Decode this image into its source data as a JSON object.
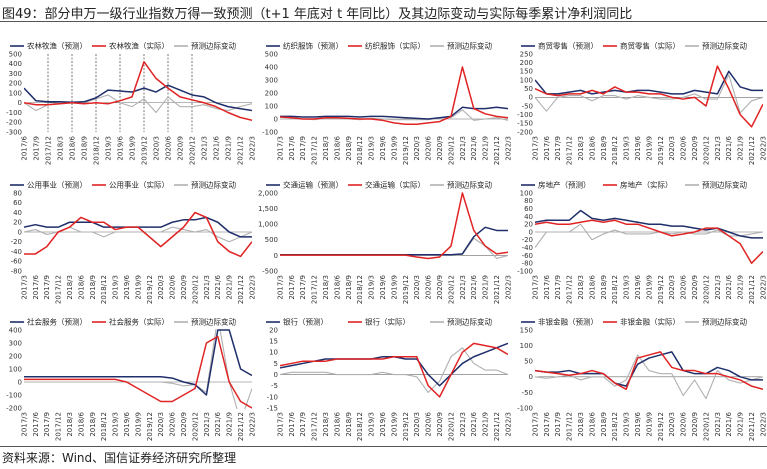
{
  "figure": {
    "title": "图49：部分申万一级行业指数万得一致预测（t+1 年底对 t 年同比）及其边际变动与实际每季累计净利润同比",
    "source": "资料来源：Wind、国信证券经济研究所整理"
  },
  "colors": {
    "forecast": "#1f2f6b",
    "actual": "#e02424",
    "change": "#b0b0b0"
  },
  "chart_data": [
    {
      "type": "line",
      "legend": [
        "农林牧渔（预测）",
        "农林牧渔（实际）",
        "预测边际变动"
      ],
      "x": [
        "2017/6",
        "2017/9",
        "2017/12",
        "2018/3",
        "2018/6",
        "2018/9",
        "2018/12",
        "2019/3",
        "2019/6",
        "2019/9",
        "2019/12",
        "2020/3",
        "2020/6",
        "2020/9",
        "2020/12",
        "2021/3",
        "2021/6",
        "2021/9",
        "2021/12",
        "2022/3"
      ],
      "y_ticks": [
        -300,
        -200,
        -100,
        0,
        100,
        200,
        300,
        400,
        500
      ],
      "ylim": [
        -300,
        500
      ],
      "vlines": [
        "2017/12",
        "2018/6",
        "2018/12",
        "2019/6",
        "2019/12",
        "2020/6",
        "2020/12"
      ],
      "series": [
        {
          "name": "农林牧渔（预测）",
          "values": [
            150,
            20,
            10,
            10,
            5,
            10,
            50,
            130,
            120,
            110,
            150,
            110,
            180,
            130,
            80,
            60,
            0,
            -40,
            -60,
            -80
          ]
        },
        {
          "name": "农林牧渔（实际）",
          "values": [
            0,
            -20,
            -20,
            -10,
            0,
            -10,
            0,
            -10,
            20,
            60,
            420,
            250,
            150,
            60,
            30,
            0,
            -40,
            -100,
            -150,
            -180
          ]
        },
        {
          "name": "预测边际变动",
          "values": [
            0,
            -80,
            -20,
            0,
            0,
            0,
            40,
            80,
            0,
            -40,
            40,
            -100,
            60,
            -40,
            -40,
            -20,
            -60,
            -80,
            -40,
            -10
          ]
        }
      ]
    },
    {
      "type": "line",
      "legend": [
        "纺织服饰（预测）",
        "纺织服饰（实际）",
        "预测边际变动"
      ],
      "x": [
        "2017/3",
        "2017/6",
        "2017/9",
        "2017/12",
        "2018/3",
        "2018/6",
        "2018/9",
        "2018/12",
        "2019/3",
        "2019/6",
        "2019/9",
        "2019/12",
        "2020/3",
        "2020/6",
        "2020/9",
        "2020/12",
        "2021/3",
        "2021/6",
        "2021/9",
        "2021/12",
        "2022/3"
      ],
      "y_ticks": [
        -100,
        0,
        100,
        200,
        300,
        400,
        500
      ],
      "ylim": [
        -100,
        500
      ],
      "series": [
        {
          "name": "纺织服饰（预测）",
          "values": [
            20,
            20,
            15,
            15,
            20,
            20,
            20,
            15,
            20,
            20,
            15,
            10,
            5,
            0,
            10,
            20,
            90,
            80,
            80,
            90,
            80
          ]
        },
        {
          "name": "纺织服饰（实际）",
          "values": [
            15,
            10,
            0,
            0,
            10,
            10,
            5,
            0,
            0,
            -10,
            -30,
            -40,
            -40,
            -30,
            -20,
            20,
            400,
            80,
            40,
            20,
            10
          ]
        },
        {
          "name": "预测边际变动",
          "values": [
            0,
            0,
            0,
            -5,
            5,
            0,
            0,
            -5,
            5,
            0,
            -5,
            -5,
            -5,
            -5,
            10,
            10,
            70,
            -10,
            0,
            10,
            -10
          ]
        }
      ]
    },
    {
      "type": "line",
      "legend": [
        "商贸零售（预测）",
        "商贸零售（实际）",
        "预测边际变动"
      ],
      "x": [
        "2017/3",
        "2017/6",
        "2017/9",
        "2017/12",
        "2018/3",
        "2018/6",
        "2018/9",
        "2018/12",
        "2019/3",
        "2019/6",
        "2019/9",
        "2019/12",
        "2020/3",
        "2020/6",
        "2020/9",
        "2020/12",
        "2021/3",
        "2021/6",
        "2021/9",
        "2021/12",
        "2022/3"
      ],
      "y_ticks": [
        -200,
        -150,
        -100,
        -50,
        0,
        50,
        100,
        150,
        200,
        250
      ],
      "ylim": [
        -200,
        250
      ],
      "series": [
        {
          "name": "商贸零售（预测）",
          "values": [
            100,
            20,
            20,
            30,
            40,
            20,
            30,
            40,
            30,
            40,
            40,
            30,
            20,
            20,
            40,
            30,
            20,
            150,
            60,
            40,
            40
          ]
        },
        {
          "name": "商贸零售（实际）",
          "values": [
            50,
            20,
            10,
            20,
            20,
            40,
            20,
            60,
            30,
            30,
            20,
            20,
            0,
            -10,
            0,
            -50,
            180,
            50,
            -100,
            -170,
            -40
          ]
        },
        {
          "name": "预测边际变动",
          "values": [
            0,
            -80,
            0,
            10,
            10,
            -20,
            10,
            10,
            -10,
            10,
            0,
            -10,
            -10,
            0,
            20,
            -10,
            -10,
            130,
            -90,
            -20,
            0
          ]
        }
      ]
    },
    {
      "type": "line",
      "legend": [
        "公用事业（预测）",
        "公用事业（实际）",
        "预测边际变动"
      ],
      "x": [
        "2017/3",
        "2017/6",
        "2017/9",
        "2017/12",
        "2018/3",
        "2018/6",
        "2018/9",
        "2018/12",
        "2019/3",
        "2019/6",
        "2019/9",
        "2019/12",
        "2020/3",
        "2020/6",
        "2020/9",
        "2020/12",
        "2021/3",
        "2021/6",
        "2021/9",
        "2021/12",
        "2022/3"
      ],
      "y_ticks": [
        -80,
        -60,
        -40,
        -20,
        0,
        20,
        40,
        60,
        80
      ],
      "ylim": [
        -80,
        80
      ],
      "series": [
        {
          "name": "公用事业（预测）",
          "values": [
            10,
            15,
            10,
            10,
            20,
            20,
            20,
            10,
            10,
            10,
            10,
            10,
            10,
            20,
            25,
            25,
            30,
            20,
            0,
            -10,
            -10
          ]
        },
        {
          "name": "公用事业（实际）",
          "values": [
            -45,
            -45,
            -30,
            0,
            10,
            30,
            20,
            20,
            5,
            10,
            10,
            -10,
            -30,
            -10,
            10,
            40,
            30,
            -20,
            -40,
            -50,
            -20
          ]
        },
        {
          "name": "预测边际变动",
          "values": [
            0,
            5,
            -5,
            0,
            10,
            0,
            0,
            -10,
            0,
            0,
            0,
            0,
            0,
            10,
            5,
            0,
            5,
            -10,
            -20,
            -10,
            0
          ]
        }
      ]
    },
    {
      "type": "line",
      "legend": [
        "交通运输（预测）",
        "交通运输（实际）",
        "预测边际变动"
      ],
      "x": [
        "2017/3",
        "2017/6",
        "2017/9",
        "2017/12",
        "2018/3",
        "2018/6",
        "2018/9",
        "2018/12",
        "2019/3",
        "2019/6",
        "2019/9",
        "2019/12",
        "2020/3",
        "2020/6",
        "2020/9",
        "2020/12",
        "2021/3",
        "2021/6",
        "2021/9",
        "2021/12",
        "2022/3"
      ],
      "y_ticks": [
        -500,
        0,
        500,
        1000,
        1500,
        2000
      ],
      "ylim": [
        -500,
        2000
      ],
      "series": [
        {
          "name": "交通运输（预测）",
          "values": [
            20,
            20,
            20,
            20,
            20,
            20,
            20,
            20,
            20,
            20,
            20,
            20,
            20,
            20,
            20,
            20,
            50,
            600,
            900,
            800,
            800
          ]
        },
        {
          "name": "交通运输（实际）",
          "values": [
            10,
            10,
            10,
            10,
            10,
            10,
            10,
            10,
            10,
            10,
            10,
            10,
            -50,
            -100,
            -50,
            300,
            2000,
            800,
            300,
            50,
            100
          ]
        },
        {
          "name": "预测边际变动",
          "values": [
            0,
            0,
            0,
            0,
            0,
            0,
            0,
            0,
            0,
            0,
            0,
            0,
            0,
            0,
            0,
            0,
            30,
            550,
            300,
            -100,
            0
          ]
        }
      ]
    },
    {
      "type": "line",
      "legend": [
        "房地产（预测）",
        "房地产（实际）",
        "预测边际变动"
      ],
      "x": [
        "2017/3",
        "2017/6",
        "2017/9",
        "2017/12",
        "2018/3",
        "2018/6",
        "2018/9",
        "2018/12",
        "2019/3",
        "2019/6",
        "2019/9",
        "2019/12",
        "2020/3",
        "2020/6",
        "2020/9",
        "2020/12",
        "2021/3",
        "2021/6",
        "2021/9",
        "2021/12",
        "2022/3"
      ],
      "y_ticks": [
        -100,
        -80,
        -60,
        -40,
        -20,
        0,
        20,
        40,
        60,
        80,
        100
      ],
      "ylim": [
        -100,
        100
      ],
      "series": [
        {
          "name": "房地产（预测）",
          "values": [
            25,
            30,
            30,
            30,
            55,
            35,
            30,
            35,
            30,
            25,
            20,
            20,
            15,
            15,
            10,
            5,
            10,
            0,
            -10,
            -15,
            -15
          ]
        },
        {
          "name": "房地产（实际）",
          "values": [
            20,
            25,
            20,
            20,
            25,
            30,
            25,
            30,
            20,
            20,
            10,
            0,
            -10,
            -5,
            0,
            10,
            10,
            -10,
            -30,
            -80,
            -50
          ]
        },
        {
          "name": "预测边际变动",
          "values": [
            -40,
            0,
            0,
            0,
            20,
            -20,
            -5,
            5,
            -5,
            -5,
            -5,
            0,
            -5,
            0,
            -5,
            -5,
            5,
            -10,
            -10,
            -5,
            0
          ]
        }
      ]
    },
    {
      "type": "line",
      "legend": [
        "社会服务（预测）",
        "社会服务（实际）",
        "预测边际变动"
      ],
      "x": [
        "2017/3",
        "2017/6",
        "2017/9",
        "2017/12",
        "2018/3",
        "2018/6",
        "2018/9",
        "2018/12",
        "2019/3",
        "2019/6",
        "2019/9",
        "2019/12",
        "2020/3",
        "2020/6",
        "2020/9",
        "2020/12",
        "2021/3",
        "2021/6",
        "2021/9",
        "2021/12",
        "2022/3"
      ],
      "y_ticks": [
        -200,
        -100,
        0,
        100,
        200,
        300,
        400
      ],
      "ylim": [
        -200,
        400
      ],
      "series": [
        {
          "name": "社会服务（预测）",
          "values": [
            40,
            40,
            40,
            40,
            40,
            40,
            40,
            40,
            40,
            40,
            40,
            40,
            40,
            30,
            0,
            -20,
            -100,
            400,
            400,
            100,
            50
          ]
        },
        {
          "name": "社会服务（实际）",
          "values": [
            20,
            20,
            20,
            20,
            20,
            20,
            20,
            20,
            20,
            0,
            -50,
            -100,
            -150,
            -150,
            -100,
            -50,
            300,
            350,
            0,
            -150,
            -200
          ]
        },
        {
          "name": "预测边际变动",
          "values": [
            0,
            0,
            0,
            0,
            0,
            0,
            0,
            0,
            0,
            0,
            0,
            0,
            0,
            -10,
            -30,
            -20,
            -80,
            500,
            0,
            -300,
            -50
          ]
        }
      ]
    },
    {
      "type": "line",
      "legend": [
        "银行（预测）",
        "银行（实际）",
        "预测边际变动"
      ],
      "x": [
        "2017/3",
        "2017/6",
        "2017/9",
        "2017/12",
        "2018/3",
        "2018/6",
        "2018/9",
        "2018/12",
        "2019/3",
        "2019/6",
        "2019/9",
        "2019/12",
        "2020/3",
        "2020/6",
        "2020/9",
        "2020/12",
        "2021/3",
        "2021/6",
        "2021/9",
        "2021/12",
        "2022/3"
      ],
      "y_ticks": [
        -15,
        -10,
        -5,
        0,
        5,
        10,
        15,
        20
      ],
      "ylim": [
        -15,
        20
      ],
      "series": [
        {
          "name": "银行（预测）",
          "values": [
            3,
            4,
            5,
            6,
            7,
            7,
            7,
            7,
            7,
            8,
            8,
            7,
            7,
            0,
            -5,
            0,
            5,
            8,
            10,
            12,
            14
          ]
        },
        {
          "name": "银行（实际）",
          "values": [
            4,
            5,
            6,
            6,
            6,
            7,
            7,
            7,
            7,
            7,
            8,
            8,
            8,
            -5,
            -10,
            0,
            10,
            14,
            13,
            12,
            9
          ]
        },
        {
          "name": "预测边际变动",
          "values": [
            0,
            1,
            1,
            1,
            1,
            0,
            0,
            0,
            0,
            1,
            0,
            0,
            -1,
            -8,
            -3,
            8,
            12,
            5,
            2,
            2,
            0
          ]
        }
      ]
    },
    {
      "type": "line",
      "legend": [
        "非银金融（预测）",
        "非银金融（实际）",
        "预测边际变动"
      ],
      "x": [
        "2017/3",
        "2017/6",
        "2017/9",
        "2017/12",
        "2018/3",
        "2018/6",
        "2018/9",
        "2018/12",
        "2019/3",
        "2019/6",
        "2019/9",
        "2019/12",
        "2020/3",
        "2020/6",
        "2020/9",
        "2020/12",
        "2021/3",
        "2021/6",
        "2021/9",
        "2021/12",
        "2022/3"
      ],
      "y_ticks": [
        -100,
        -50,
        0,
        50,
        100,
        150
      ],
      "ylim": [
        -100,
        150
      ],
      "series": [
        {
          "name": "非银金融（预测）",
          "values": [
            20,
            15,
            15,
            20,
            10,
            10,
            10,
            -20,
            -30,
            40,
            60,
            70,
            80,
            20,
            10,
            10,
            30,
            20,
            0,
            -10,
            -10
          ]
        },
        {
          "name": "非银金融（实际）",
          "values": [
            20,
            15,
            10,
            5,
            10,
            20,
            10,
            -20,
            -40,
            60,
            70,
            80,
            30,
            20,
            20,
            10,
            10,
            0,
            -10,
            -30,
            -40
          ]
        },
        {
          "name": "预测边际变动",
          "values": [
            0,
            -5,
            0,
            5,
            -10,
            0,
            0,
            -30,
            -10,
            70,
            20,
            10,
            10,
            -60,
            -10,
            -70,
            20,
            -10,
            -20,
            -10,
            0
          ]
        }
      ]
    }
  ]
}
